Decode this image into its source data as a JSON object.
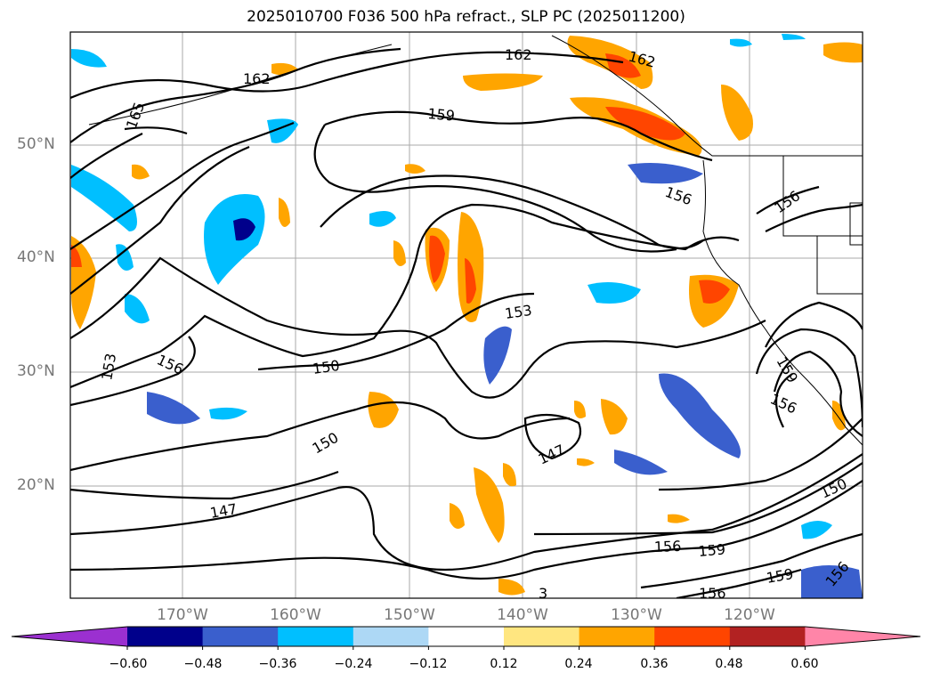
{
  "title": "2025010700 F036 500 hPa refract., SLP PC (2025011200)",
  "lat_labels": [
    "50°N",
    "40°N",
    "30°N",
    "20°N"
  ],
  "lon_labels": [
    "170°W",
    "160°W",
    "150°W",
    "140°W",
    "130°W",
    "120°W"
  ],
  "contour_labels": [
    "162",
    "162",
    "162",
    "165",
    "159",
    "156",
    "156",
    "153",
    "153",
    "156",
    "150",
    "159",
    "156",
    "150",
    "147",
    "147",
    "150",
    "156",
    "159",
    "159",
    "156",
    "156",
    "3"
  ],
  "colorbar": {
    "ticks": [
      "−0.60",
      "−0.48",
      "−0.36",
      "−0.24",
      "−0.12",
      "0.12",
      "0.24",
      "0.36",
      "0.48",
      "0.60"
    ],
    "colors": [
      "#9b30d0",
      "#00008b",
      "#3a5fcd",
      "#00bfff",
      "#add8f5",
      "#ffffff",
      "#ffe680",
      "#ffa500",
      "#ff4500",
      "#b22222",
      "#ff85a8"
    ]
  },
  "fill_colors": {
    "neg_light": "#add8f5",
    "neg_mid": "#00bfff",
    "neg_dark": "#3a5fcd",
    "neg_deep": "#00008b",
    "pos_light": "#ffe680",
    "pos_mid": "#ffa500",
    "pos_dark": "#ff4500",
    "pos_deep": "#b22222"
  }
}
